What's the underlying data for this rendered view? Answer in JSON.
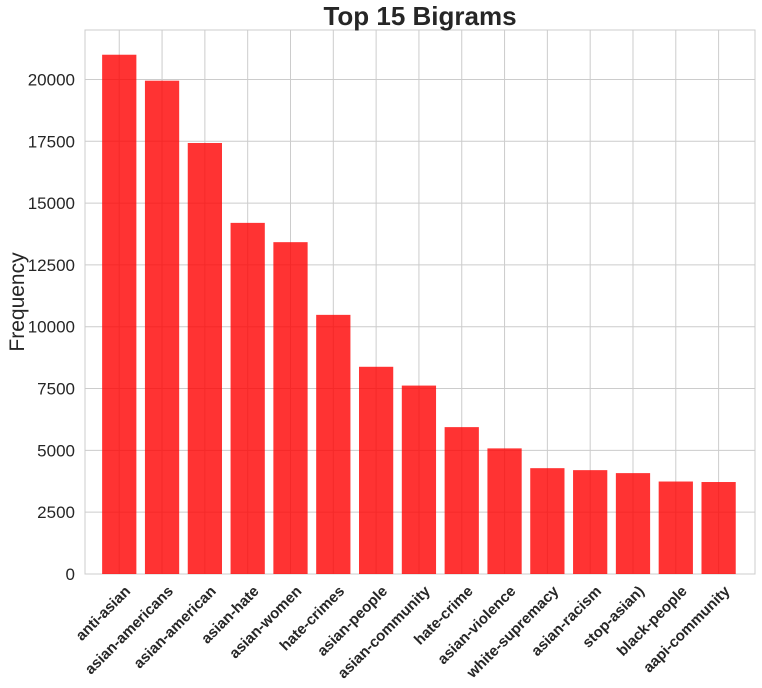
{
  "chart_data": {
    "type": "bar",
    "title": "Top 15 Bigrams",
    "xlabel": "",
    "ylabel": "Frequency",
    "categories": [
      "anti-asian",
      "asian-americans",
      "asian-american",
      "asian-hate",
      "asian-women",
      "hate-crimes",
      "asian-people",
      "asian-community",
      "hate-crime",
      "asian-violence",
      "white-supremacy",
      "asian-racism",
      "stop-asian)",
      "black-people",
      "aapi-community"
    ],
    "values": [
      21000,
      19950,
      17430,
      14200,
      13420,
      10480,
      8380,
      7620,
      5940,
      5080,
      4280,
      4200,
      4080,
      3740,
      3720
    ],
    "ylim": [
      0,
      22000
    ],
    "yticks": [
      0,
      2500,
      5000,
      7500,
      10000,
      12500,
      15000,
      17500,
      20000
    ],
    "grid": true,
    "bar_color": "#ff0000",
    "bar_opacity": 0.8,
    "grid_color": "#cccccc"
  }
}
